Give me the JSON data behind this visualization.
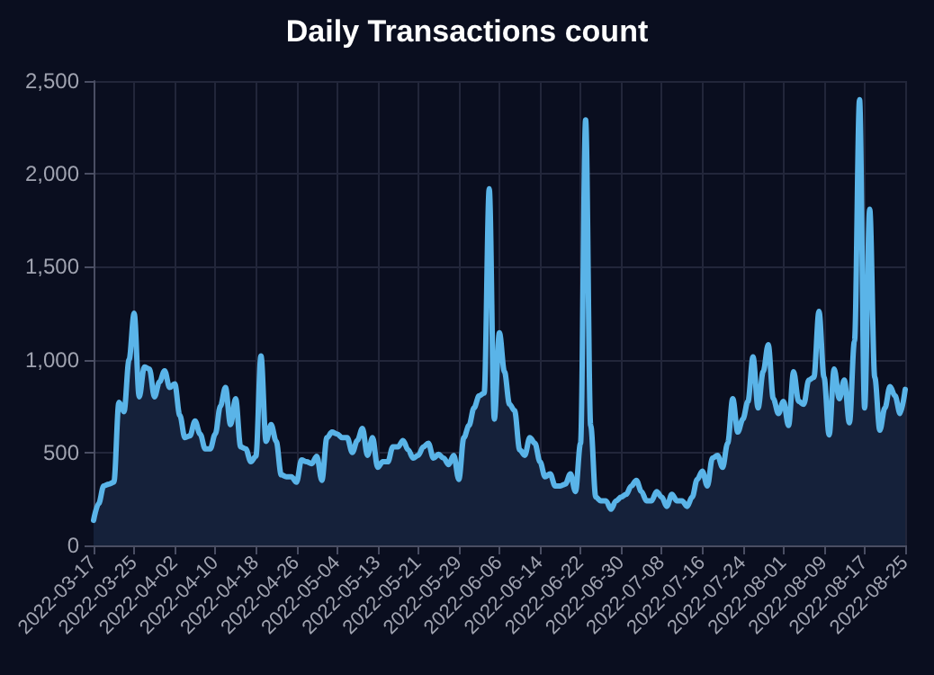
{
  "chart_data": {
    "type": "area",
    "title": "Daily Transactions count",
    "categories": [
      "2022-03-17",
      null,
      null,
      null,
      null,
      null,
      null,
      null,
      "2022-03-25",
      null,
      null,
      null,
      null,
      null,
      null,
      null,
      "2022-04-02",
      null,
      null,
      null,
      null,
      null,
      null,
      null,
      "2022-04-10",
      null,
      null,
      null,
      null,
      null,
      null,
      null,
      "2022-04-18",
      null,
      null,
      null,
      null,
      null,
      null,
      null,
      "2022-04-26",
      null,
      null,
      null,
      null,
      null,
      null,
      null,
      "2022-05-04",
      null,
      null,
      null,
      null,
      null,
      null,
      null,
      "2022-05-13",
      null,
      null,
      null,
      null,
      null,
      null,
      null,
      "2022-05-21",
      null,
      null,
      null,
      null,
      null,
      null,
      null,
      "2022-05-29",
      null,
      null,
      null,
      null,
      null,
      null,
      null,
      "2022-06-06",
      null,
      null,
      null,
      null,
      null,
      null,
      null,
      "2022-06-14",
      null,
      null,
      null,
      null,
      null,
      null,
      null,
      "2022-06-22",
      null,
      null,
      null,
      null,
      null,
      null,
      null,
      "2022-06-30",
      null,
      null,
      null,
      null,
      null,
      null,
      null,
      "2022-07-08",
      null,
      null,
      null,
      null,
      null,
      null,
      null,
      "2022-07-16",
      null,
      null,
      null,
      null,
      null,
      null,
      null,
      "2022-07-24",
      null,
      null,
      null,
      null,
      null,
      null,
      null,
      "2022-08-01",
      null,
      null,
      null,
      null,
      null,
      null,
      null,
      "2022-08-09",
      null,
      null,
      null,
      null,
      null,
      null,
      null,
      "2022-08-17",
      null,
      null,
      null,
      null,
      null,
      null,
      null,
      "2022-08-25"
    ],
    "series": [
      {
        "color": "#5ab4e8",
        "values": [
          135,
          225,
          320,
          330,
          340,
          770,
          720,
          1000,
          1250,
          800,
          960,
          950,
          800,
          880,
          940,
          850,
          870,
          700,
          580,
          590,
          670,
          600,
          520,
          520,
          600,
          750,
          850,
          650,
          790,
          530,
          520,
          450,
          480,
          1020,
          560,
          650,
          560,
          380,
          370,
          370,
          340,
          460,
          450,
          440,
          480,
          350,
          580,
          610,
          600,
          580,
          580,
          500,
          565,
          630,
          485,
          580,
          420,
          450,
          450,
          530,
          530,
          565,
          515,
          470,
          485,
          530,
          550,
          470,
          490,
          470,
          435,
          485,
          355,
          580,
          645,
          740,
          805,
          820,
          1920,
          680,
          1145,
          935,
          760,
          725,
          515,
          485,
          580,
          550,
          450,
          370,
          385,
          320,
          320,
          330,
          385,
          290,
          550,
          2290,
          645,
          260,
          240,
          240,
          195,
          240,
          260,
          275,
          320,
          350,
          290,
          240,
          240,
          290,
          260,
          210,
          275,
          240,
          240,
          210,
          260,
          355,
          400,
          320,
          470,
          485,
          420,
          550,
          790,
          610,
          680,
          775,
          1015,
          740,
          935,
          1080,
          790,
          710,
          775,
          645,
          935,
          775,
          760,
          890,
          905,
          1260,
          905,
          595,
          950,
          790,
          890,
          660,
          1100,
          2400,
          740,
          1810,
          905,
          620,
          740,
          855,
          805,
          710,
          840
        ]
      }
    ],
    "ylim": [
      0,
      2500
    ],
    "yticks": [
      0,
      500,
      {
        "value": 1000,
        "label": "1,000"
      },
      {
        "value": 1500,
        "label": "1,500"
      },
      {
        "value": 2000,
        "label": "2,000"
      },
      {
        "value": 2500,
        "label": "2,500"
      }
    ],
    "grid": true,
    "marker": "none",
    "line_style": "solid"
  }
}
